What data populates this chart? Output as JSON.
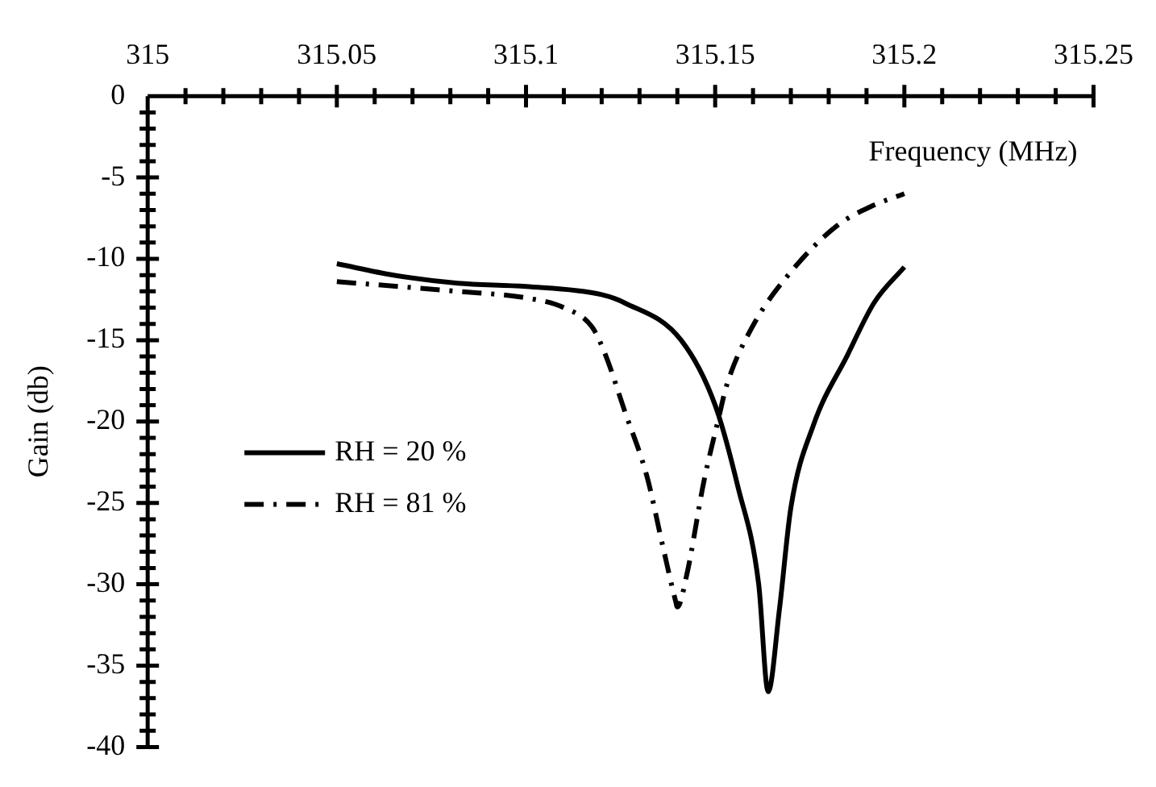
{
  "chart_data": {
    "type": "line",
    "xlabel": "Frequency (MHz)",
    "ylabel": "Gain (db)",
    "xlim": [
      315,
      315.25
    ],
    "ylim": [
      -40,
      0
    ],
    "xticks": [
      315,
      {
        "value": 315.01,
        "label": null
      },
      {
        "value": 315.02,
        "label": null
      },
      {
        "value": 315.03,
        "label": null
      },
      {
        "value": 315.04,
        "label": null
      },
      315.05,
      {
        "value": 315.06,
        "label": null
      },
      {
        "value": 315.07,
        "label": null
      },
      {
        "value": 315.08,
        "label": null
      },
      {
        "value": 315.09,
        "label": null
      },
      315.1,
      {
        "value": 315.11,
        "label": null
      },
      {
        "value": 315.12,
        "label": null
      },
      {
        "value": 315.13,
        "label": null
      },
      {
        "value": 315.14,
        "label": null
      },
      315.15,
      {
        "value": 315.16,
        "label": null
      },
      {
        "value": 315.17,
        "label": null
      },
      {
        "value": 315.18,
        "label": null
      },
      {
        "value": 315.19,
        "label": null
      },
      315.2,
      {
        "value": 315.21,
        "label": null
      },
      {
        "value": 315.22,
        "label": null
      },
      {
        "value": 315.23,
        "label": null
      },
      {
        "value": 315.24,
        "label": null
      },
      315.25
    ],
    "yticks": [
      0,
      {
        "value": -1,
        "label": null
      },
      {
        "value": -2,
        "label": null
      },
      {
        "value": -3,
        "label": null
      },
      {
        "value": -4,
        "label": null
      },
      -5,
      {
        "value": -6,
        "label": null
      },
      {
        "value": -7,
        "label": null
      },
      {
        "value": -8,
        "label": null
      },
      {
        "value": -9,
        "label": null
      },
      -10,
      {
        "value": -11,
        "label": null
      },
      {
        "value": -12,
        "label": null
      },
      {
        "value": -13,
        "label": null
      },
      {
        "value": -14,
        "label": null
      },
      -15,
      {
        "value": -16,
        "label": null
      },
      {
        "value": -17,
        "label": null
      },
      {
        "value": -18,
        "label": null
      },
      {
        "value": -19,
        "label": null
      },
      -20,
      {
        "value": -21,
        "label": null
      },
      {
        "value": -22,
        "label": null
      },
      {
        "value": -23,
        "label": null
      },
      {
        "value": -24,
        "label": null
      },
      -25,
      {
        "value": -26,
        "label": null
      },
      {
        "value": -27,
        "label": null
      },
      {
        "value": -28,
        "label": null
      },
      {
        "value": -29,
        "label": null
      },
      -30,
      {
        "value": -31,
        "label": null
      },
      {
        "value": -32,
        "label": null
      },
      {
        "value": -33,
        "label": null
      },
      {
        "value": -34,
        "label": null
      },
      -35,
      {
        "value": -36,
        "label": null
      },
      {
        "value": -37,
        "label": null
      },
      {
        "value": -38,
        "label": null
      },
      {
        "value": -39,
        "label": null
      },
      -40
    ],
    "legend": "left",
    "marker": "none",
    "series": [
      {
        "name": "RH = 20 %",
        "color": "#000000",
        "line_style": "solid",
        "x": [
          315.05,
          315.065,
          315.082,
          315.1,
          315.12,
          315.126,
          315.141,
          315.15,
          315.156,
          315.1615,
          315.164,
          315.167,
          315.17,
          315.176,
          315.185,
          315.192,
          315.2
        ],
        "values": [
          -10.3,
          -11,
          -11.5,
          -11.7,
          -12.2,
          -12.7,
          -15,
          -19,
          -24,
          -30,
          -36.6,
          -31.5,
          -25.3,
          -20.2,
          -15.9,
          -12.7,
          -10.5
        ]
      },
      {
        "name": "RH = 81 %",
        "color": "#000000",
        "line_style": "dashdot",
        "x": [
          315.05,
          315.082,
          315.1,
          315.11,
          315.1175,
          315.121,
          315.126,
          315.132,
          315.136,
          315.1395,
          315.14,
          315.1425,
          315.147,
          315.151,
          315.153,
          315.16,
          315.17,
          315.182,
          315.191,
          315.2
        ],
        "values": [
          -11.4,
          -12,
          -12.4,
          -13,
          -14.2,
          -15.9,
          -19.3,
          -23.4,
          -27.5,
          -31,
          -31.4,
          -29.4,
          -23.7,
          -19.7,
          -17.8,
          -14.1,
          -10.8,
          -8,
          -6.8,
          -6
        ]
      }
    ]
  }
}
